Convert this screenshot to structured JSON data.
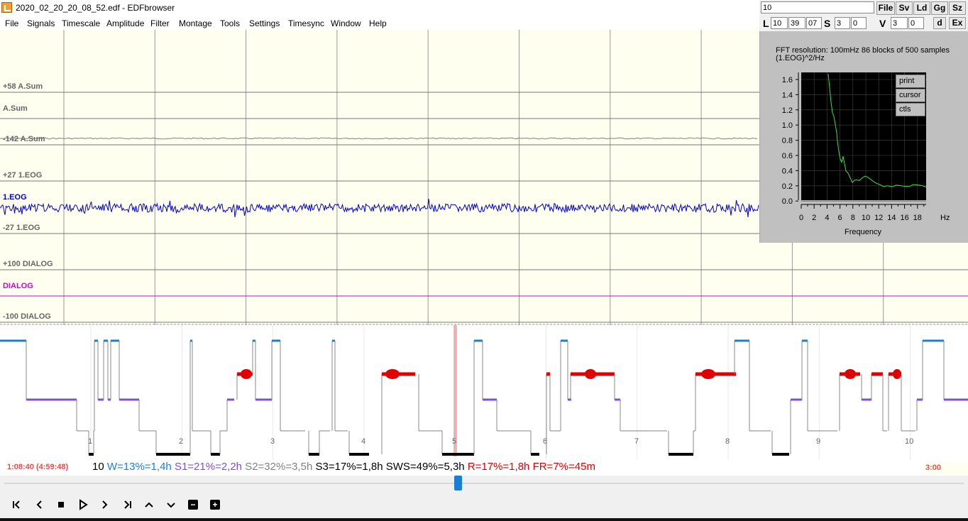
{
  "window": {
    "title": "2020_02_20_20_08_52.edf - EDFbrowser"
  },
  "menu": [
    "File",
    "Signals",
    "Timescale",
    "Amplitude",
    "Filter",
    "Montage",
    "Tools",
    "Settings",
    "Timesync",
    "Window",
    "Help"
  ],
  "channels": [
    {
      "name": "A.Sum",
      "top_label": "+58 A.Sum",
      "bottom_label": "-142 A.Sum",
      "color": "#808080"
    },
    {
      "name": "1.EOG",
      "top_label": "+27 1.EOG",
      "bottom_label": "-27 1.EOG",
      "color": "#0000cc"
    },
    {
      "name": "DIALOG",
      "top_label": "+100 DIALOG",
      "bottom_label": "-100 DIALOG",
      "color": "#d000d0"
    }
  ],
  "hypnogram": {
    "hour_labels": [
      "1",
      "2",
      "3",
      "4",
      "5",
      "6",
      "7",
      "8",
      "9",
      "10"
    ],
    "time_left": "1:08:40 (4:59:48)",
    "time_right": "3:00",
    "stats": {
      "count": "10",
      "w": "W=13%=1,4h",
      "s1": "S1=21%=2,2h",
      "s2": "S2=32%=3,5h",
      "s3": "S3=17%=1,8h",
      "sws": "SWS=49%=5,3h",
      "r": "R=17%=1,8h",
      "fr": "FR=7%=45m"
    },
    "colors": {
      "w": "#1a7fd4",
      "s1": "#8050d0",
      "s2": "#808080",
      "s3": "#000000",
      "r": "#e00000",
      "cursor": "#f08080"
    }
  },
  "controls": {
    "search_value": "10",
    "buttons": [
      "File",
      "Sv",
      "Ld",
      "Gg",
      "Sz"
    ],
    "l_label": "L",
    "l_fields": [
      "10",
      "39",
      "07"
    ],
    "s_label": "S",
    "s_fields": [
      "3",
      "0"
    ],
    "v_label": "V",
    "v_fields": [
      "3",
      "0"
    ],
    "d_label": "d",
    "ex_label": "Ex"
  },
  "fft": {
    "resolution_text": "FFT resolution:  100mHz   86 blocks of 500 samples",
    "unit": "(1.EOG)^2/Hz",
    "buttons": [
      "print",
      "cursor",
      "ctls"
    ],
    "y_ticks": [
      "1.6",
      "1.4",
      "1.2",
      "1.0",
      "0.8",
      "0.6",
      "0.4",
      "0.2",
      "0.0"
    ],
    "x_ticks": [
      "0",
      "2",
      "4",
      "6",
      "8",
      "10",
      "12",
      "14",
      "16",
      "18"
    ],
    "x_unit": "Hz",
    "x_title": "Frequency"
  },
  "toolbar": {
    "first_icon": "skip-back-icon",
    "prev_icon": "prev-icon",
    "stop_icon": "stop-icon",
    "play_icon": "play-icon",
    "next_icon": "next-icon",
    "last_icon": "skip-forward-icon",
    "up_icon": "chevron-up-icon",
    "down_icon": "chevron-down-icon",
    "minus_icon": "zoom-out-icon",
    "plus_icon": "zoom-in-icon"
  }
}
